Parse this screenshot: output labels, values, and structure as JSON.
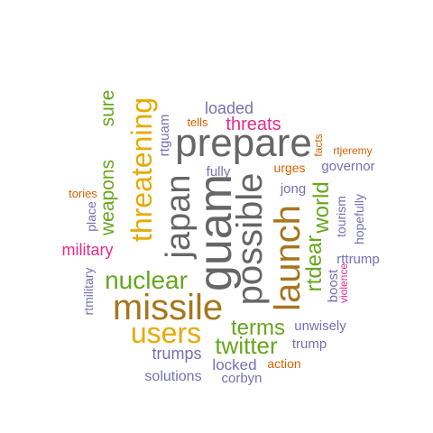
{
  "palette": {
    "gray": "#666666",
    "brown": "#a6761d",
    "gold": "#e6ab02",
    "green": "#66a61e",
    "magenta": "#e7298a",
    "purple": "#7570b3",
    "orange": "#d95f02"
  },
  "words": [
    {
      "id": "prepare",
      "text": "prepare",
      "color": "gray"
    },
    {
      "id": "guam",
      "text": "guam",
      "color": "gray"
    },
    {
      "id": "possible",
      "text": "possible",
      "color": "gray"
    },
    {
      "id": "japan",
      "text": "japan",
      "color": "gray"
    },
    {
      "id": "missile",
      "text": "missile",
      "color": "brown"
    },
    {
      "id": "launch",
      "text": "launch",
      "color": "brown"
    },
    {
      "id": "threatening",
      "text": "threatening",
      "color": "gold"
    },
    {
      "id": "users",
      "text": "users",
      "color": "gold"
    },
    {
      "id": "nuclear",
      "text": "nuclear",
      "color": "green"
    },
    {
      "id": "twitter",
      "text": "twitter",
      "color": "green"
    },
    {
      "id": "terms",
      "text": "terms",
      "color": "green"
    },
    {
      "id": "weapons",
      "text": "weapons",
      "color": "green"
    },
    {
      "id": "sure",
      "text": "sure",
      "color": "green"
    },
    {
      "id": "world",
      "text": "world",
      "color": "green"
    },
    {
      "id": "rtdear",
      "text": "rtdear",
      "color": "green"
    },
    {
      "id": "threats",
      "text": "threats",
      "color": "magenta"
    },
    {
      "id": "military",
      "text": "military",
      "color": "magenta"
    },
    {
      "id": "violence",
      "text": "violence",
      "color": "magenta"
    },
    {
      "id": "loaded",
      "text": "loaded",
      "color": "purple"
    },
    {
      "id": "trumps",
      "text": "trumps",
      "color": "purple"
    },
    {
      "id": "locked",
      "text": "locked",
      "color": "purple"
    },
    {
      "id": "solutions",
      "text": "solutions",
      "color": "purple"
    },
    {
      "id": "corbyn",
      "text": "corbyn",
      "color": "purple"
    },
    {
      "id": "trump",
      "text": "trump",
      "color": "purple"
    },
    {
      "id": "unwisely",
      "text": "unwisely",
      "color": "purple"
    },
    {
      "id": "rttrump",
      "text": "rttrump",
      "color": "purple"
    },
    {
      "id": "boost",
      "text": "boost",
      "color": "purple"
    },
    {
      "id": "governor",
      "text": "governor",
      "color": "purple"
    },
    {
      "id": "jong",
      "text": "jong",
      "color": "purple"
    },
    {
      "id": "fully",
      "text": "fully",
      "color": "purple"
    },
    {
      "id": "rtguam",
      "text": "rtguam",
      "color": "purple"
    },
    {
      "id": "place",
      "text": "place",
      "color": "purple"
    },
    {
      "id": "rtmilitary",
      "text": "rtmilitary",
      "color": "purple"
    },
    {
      "id": "tourism",
      "text": "tourism",
      "color": "purple"
    },
    {
      "id": "hopefully",
      "text": "hopefully",
      "color": "purple"
    },
    {
      "id": "tells",
      "text": "tells",
      "color": "orange"
    },
    {
      "id": "urges",
      "text": "urges",
      "color": "orange"
    },
    {
      "id": "facts",
      "text": "facts",
      "color": "orange"
    },
    {
      "id": "rtjeremy",
      "text": "rtjeremy",
      "color": "orange"
    },
    {
      "id": "tories",
      "text": "tories",
      "color": "orange"
    },
    {
      "id": "action",
      "text": "action",
      "color": "orange"
    }
  ]
}
